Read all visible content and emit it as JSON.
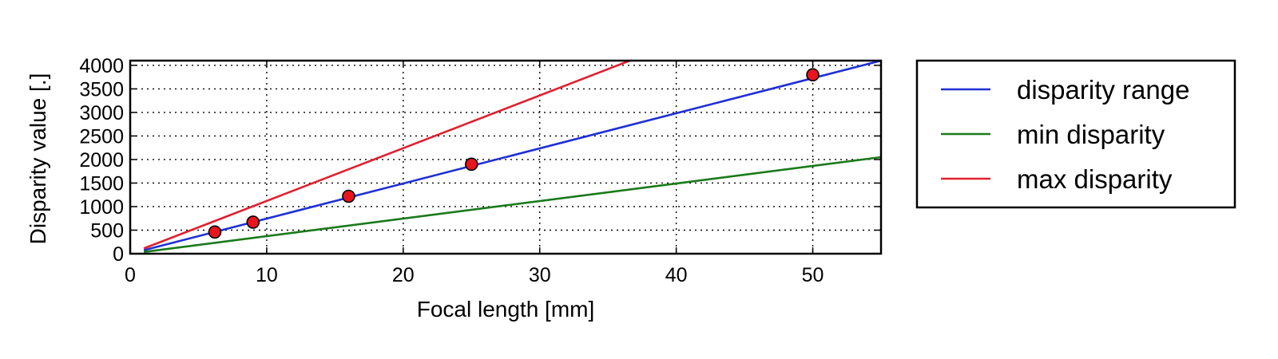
{
  "chart_data": {
    "type": "line",
    "xlabel": "Focal length [mm]",
    "ylabel": "Disparity value [.]",
    "xlim": [
      0,
      55
    ],
    "ylim": [
      0,
      4100
    ],
    "xticks": [
      0,
      10,
      20,
      30,
      40,
      50
    ],
    "yticks": [
      0,
      500,
      1000,
      1500,
      2000,
      2500,
      3000,
      3500,
      4000
    ],
    "grid": true,
    "legend_position": "right, outside plot",
    "series": [
      {
        "name": "disparity range",
        "color": "#1f2fd6",
        "x": [
          1,
          55
        ],
        "y": [
          75,
          4100
        ]
      },
      {
        "name": "min disparity",
        "color": "#1a7a1a",
        "x": [
          1,
          55
        ],
        "y": [
          37,
          2050
        ]
      },
      {
        "name": "max disparity",
        "color": "#e0202e",
        "x": [
          1,
          36.6
        ],
        "y": [
          112,
          4100
        ]
      }
    ],
    "points": {
      "color": "#e8141e",
      "x": [
        6.2,
        9,
        16,
        25,
        50
      ],
      "y": [
        460,
        670,
        1220,
        1900,
        3800
      ]
    }
  }
}
